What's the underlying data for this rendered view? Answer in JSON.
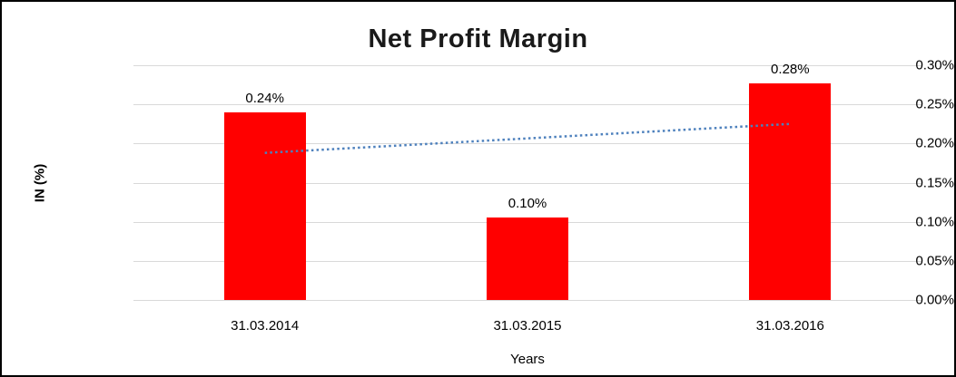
{
  "chart_data": {
    "type": "bar",
    "title": "Net Profit Margin",
    "xlabel": "Years",
    "ylabel": "IN (%)",
    "categories": [
      "31.03.2014",
      "31.03.2015",
      "31.03.2016"
    ],
    "values": [
      0.24,
      0.105,
      0.277
    ],
    "value_labels": [
      "0.24%",
      "0.10%",
      "0.28%"
    ],
    "y_ticks": [
      "0.30%",
      "0.25%",
      "0.20%",
      "0.15%",
      "0.10%",
      "0.05%",
      "0.00%"
    ],
    "ylim": [
      0,
      0.3
    ],
    "grid": true,
    "legend": false,
    "bar_color": "#ff0000",
    "gridline_color": "#d9d9d9",
    "trendline": {
      "type": "linear",
      "style": "dotted",
      "color": "#4e81bd",
      "start_value": 0.188,
      "end_value": 0.225
    }
  }
}
